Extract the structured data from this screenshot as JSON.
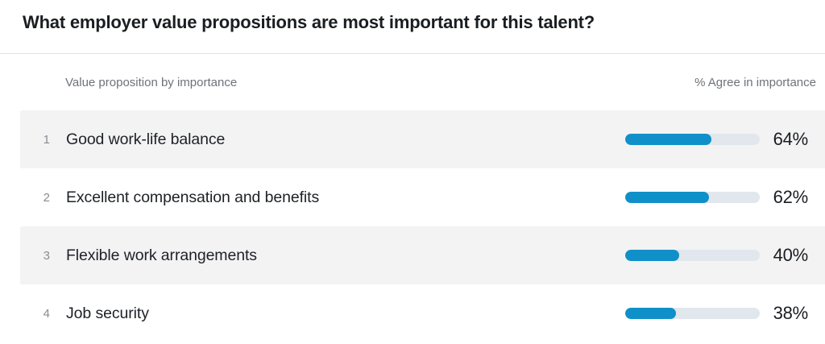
{
  "title": "What employer value propositions are most important for this talent?",
  "table": {
    "col_left": "Value proposition by importance",
    "col_right": "% Agree in importance",
    "rows": [
      {
        "rank": "1",
        "label": "Good work-life balance",
        "value": 64,
        "value_label": "64%"
      },
      {
        "rank": "2",
        "label": "Excellent compensation and benefits",
        "value": 62,
        "value_label": "62%"
      },
      {
        "rank": "3",
        "label": "Flexible work arrangements",
        "value": 40,
        "value_label": "40%"
      },
      {
        "rank": "4",
        "label": "Job security",
        "value": 38,
        "value_label": "38%"
      }
    ]
  },
  "colors": {
    "bar_fill": "#1090c8",
    "bar_track": "#e1e7ed",
    "row_alt_bg": "#f3f3f4"
  },
  "chart_data": {
    "type": "bar",
    "title": "What employer value propositions are most important for this talent?",
    "categories": [
      "Good work-life balance",
      "Excellent compensation and benefits",
      "Flexible work arrangements",
      "Job security"
    ],
    "values": [
      64,
      62,
      40,
      38
    ],
    "xlabel": "Value proposition by importance",
    "ylabel": "% Agree in importance",
    "ylim": [
      0,
      100
    ],
    "grid": false,
    "legend": false,
    "orientation": "horizontal",
    "value_suffix": "%"
  }
}
